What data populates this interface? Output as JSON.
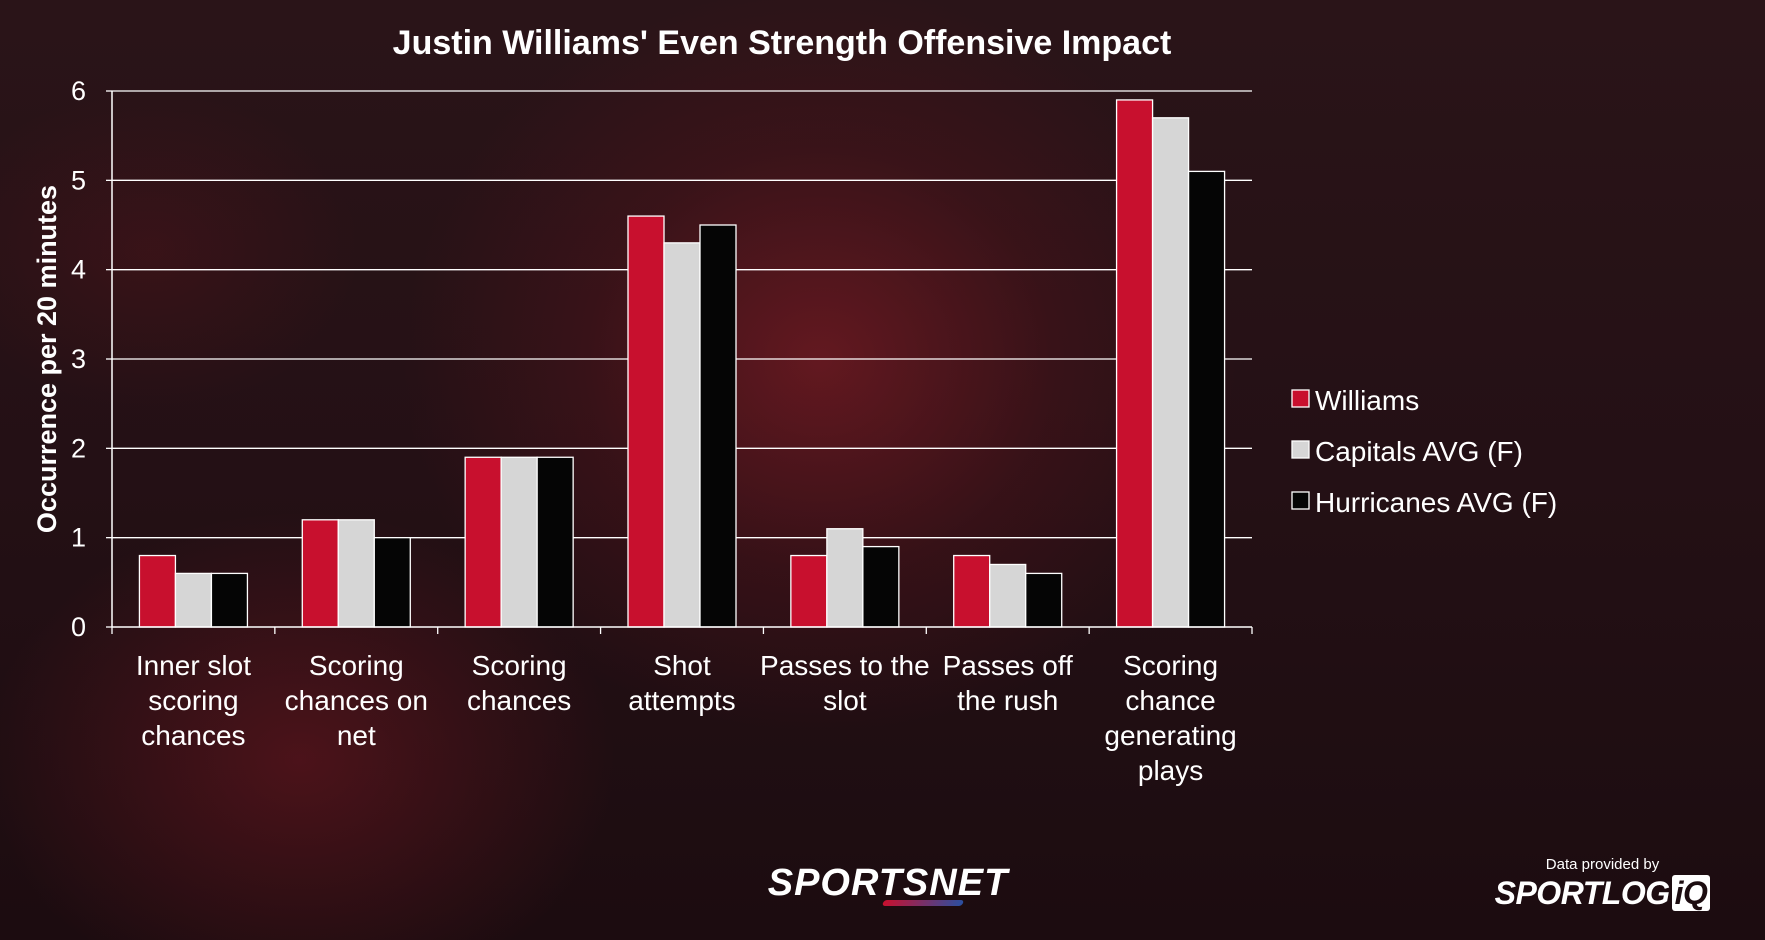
{
  "chart_data": {
    "type": "bar",
    "title": "Justin Williams' Even Strength Offensive Impact",
    "ylabel": "Occurrence per 20 minutes",
    "xlabel": "",
    "ylim": [
      0,
      6
    ],
    "yticks": [
      "0",
      "1",
      "2",
      "3",
      "4",
      "5",
      "6"
    ],
    "grid": true,
    "legend_position": "right",
    "categories": [
      [
        "Inner slot",
        "scoring",
        "chances"
      ],
      [
        "Scoring",
        "chances on",
        "net"
      ],
      [
        "Scoring",
        "chances"
      ],
      [
        "Shot",
        "attempts"
      ],
      [
        "Passes to the",
        "slot"
      ],
      [
        "Passes off",
        "the rush"
      ],
      [
        "Scoring",
        "chance",
        "generating",
        "plays"
      ]
    ],
    "series": [
      {
        "name": "Williams",
        "color": "#c8102e",
        "values": [
          0.8,
          1.2,
          1.9,
          4.6,
          0.8,
          0.8,
          5.9
        ]
      },
      {
        "name": "Capitals AVG (F)",
        "color": "#d6d6d6",
        "values": [
          0.6,
          1.2,
          1.9,
          4.3,
          1.1,
          0.7,
          5.7
        ]
      },
      {
        "name": "Hurricanes AVG (F)",
        "color": "#050505",
        "values": [
          0.6,
          1.0,
          1.9,
          4.5,
          0.9,
          0.6,
          5.1
        ]
      }
    ]
  },
  "credits": {
    "provider_label": "Data provided by",
    "provider_brand": "SPORTLOG",
    "provider_brand_suffix": "iQ",
    "network_logo_a": "SPORTS",
    "network_logo_b": "NET"
  }
}
